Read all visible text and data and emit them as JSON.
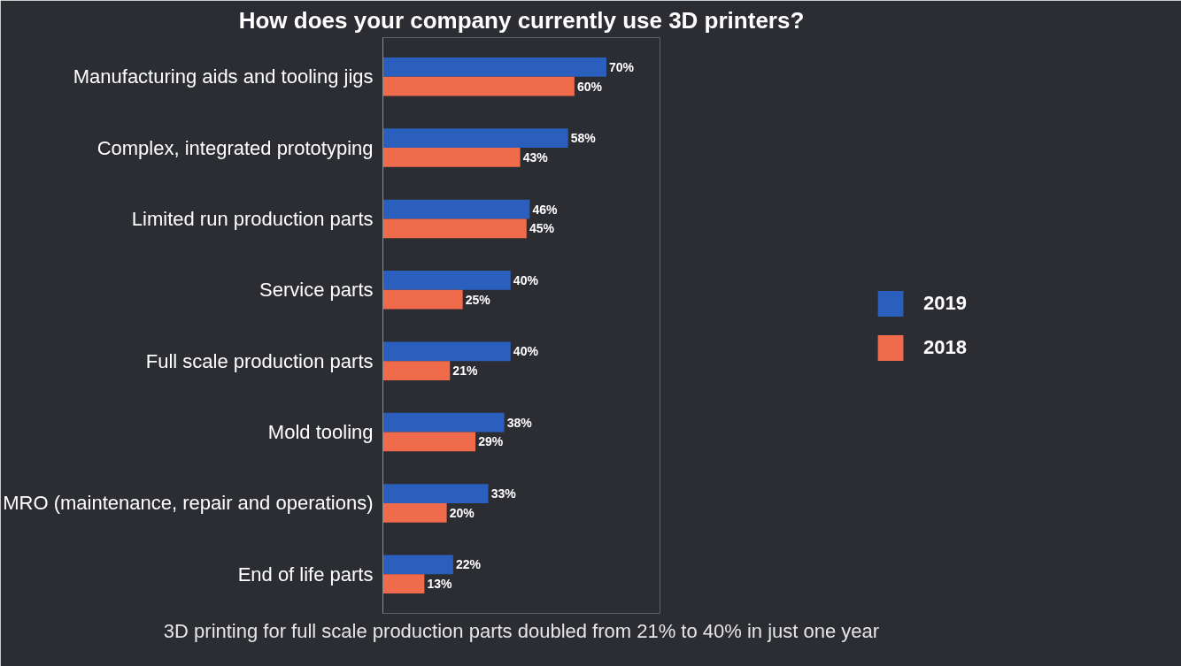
{
  "chart_data": {
    "type": "bar",
    "orientation": "horizontal",
    "title": "How does your company currently use 3D printers?",
    "categories": [
      "Manufacturing aids and tooling jigs",
      "Complex, integrated prototyping",
      "Limited run production parts",
      "Service parts",
      "Full scale production parts",
      "Mold tooling",
      "MRO (maintenance, repair and operations)",
      "End of life parts"
    ],
    "series": [
      {
        "name": "2019",
        "color": "#2a5fbd",
        "values": [
          70,
          58,
          46,
          40,
          40,
          38,
          33,
          22
        ],
        "value_labels": [
          "70%",
          "58%",
          "46%",
          "40%",
          "40%",
          "38%",
          "33%",
          "22%"
        ]
      },
      {
        "name": "2018",
        "color": "#f06a4c",
        "values": [
          60,
          43,
          45,
          25,
          21,
          29,
          20,
          13
        ],
        "value_labels": [
          "60%",
          "43%",
          "45%",
          "25%",
          "21%",
          "29%",
          "20%",
          "13%"
        ]
      }
    ],
    "legend": "right",
    "grid": false,
    "annotations": [
      "3D printing for full scale production parts doubled from 21% to 40% in just one year"
    ]
  }
}
